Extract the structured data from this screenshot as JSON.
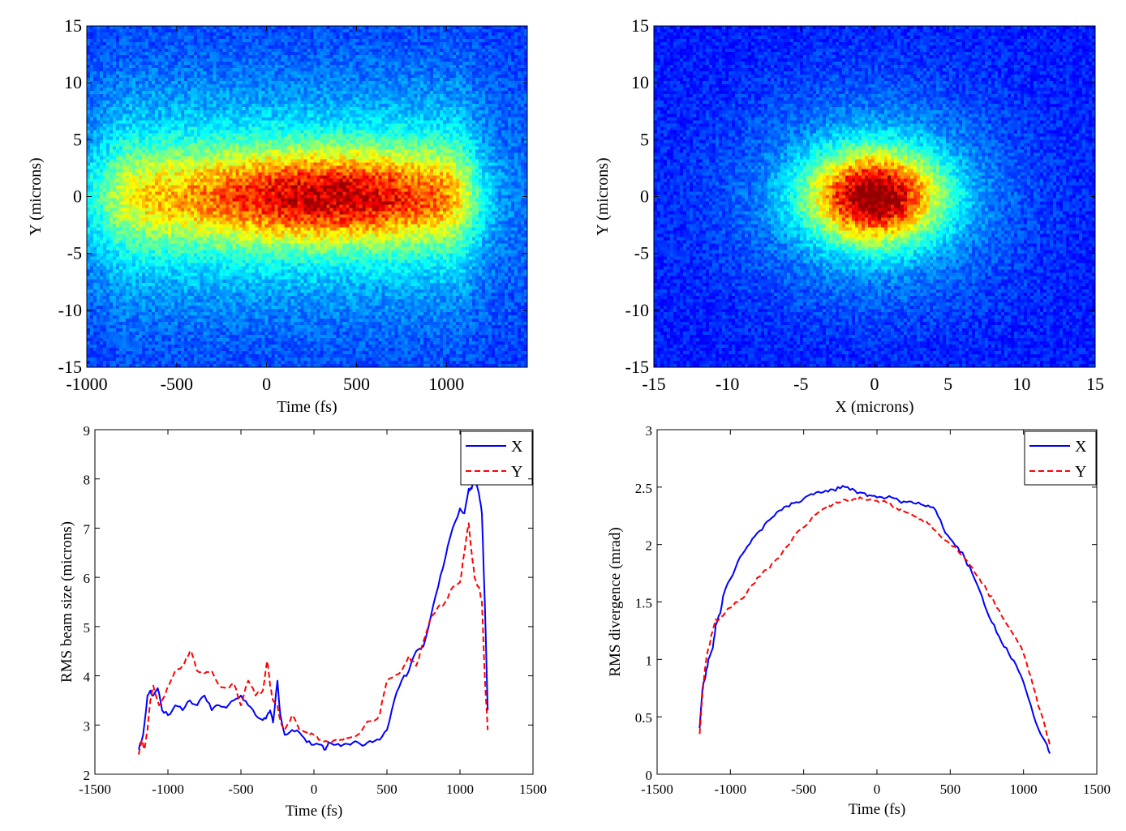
{
  "chart_data": [
    {
      "type": "heatmap",
      "xlabel": "Time (fs)",
      "ylabel": "Y (microns)",
      "xlim": [
        -1000,
        1450
      ],
      "ylim": [
        -15,
        15
      ],
      "xticks": [
        -1000,
        -500,
        0,
        500,
        1000
      ],
      "yticks": [
        -15,
        -10,
        -5,
        0,
        5,
        10,
        15
      ],
      "xtick_labels": [
        "-1000",
        "-500",
        "0",
        "500",
        "1000"
      ],
      "ytick_labels": [
        "-15",
        "-10",
        "-5",
        "0",
        "5",
        "10",
        "15"
      ],
      "colormap": "jet",
      "distribution": {
        "x_center": 300,
        "x_range": [
          -1000,
          1200
        ],
        "y_sigma": 3.2,
        "peak_x": 330,
        "peak_y": 0
      },
      "grid": false
    },
    {
      "type": "heatmap",
      "xlabel": "X (microns)",
      "ylabel": "Y (microns)",
      "xlim": [
        -15,
        15
      ],
      "ylim": [
        -15,
        15
      ],
      "xticks": [
        -15,
        -10,
        -5,
        0,
        5,
        10,
        15
      ],
      "yticks": [
        -15,
        -10,
        -5,
        0,
        5,
        10,
        15
      ],
      "xtick_labels": [
        "-15",
        "-10",
        "-5",
        "0",
        "5",
        "10",
        "15"
      ],
      "ytick_labels": [
        "-15",
        "-10",
        "-5",
        "0",
        "5",
        "10",
        "15"
      ],
      "colormap": "jet",
      "distribution": {
        "x_center": 0,
        "y_center": 0,
        "x_sigma": 3.3,
        "y_sigma": 3.0
      },
      "grid": false
    },
    {
      "type": "line",
      "xlabel": "Time (fs)",
      "ylabel": "RMS beam size (microns)",
      "xlim": [
        -1500,
        1500
      ],
      "ylim": [
        2,
        9
      ],
      "xticks": [
        -1500,
        -1000,
        -500,
        0,
        500,
        1000,
        1500
      ],
      "yticks": [
        2,
        3,
        4,
        5,
        6,
        7,
        8,
        9
      ],
      "xtick_labels": [
        "-1500",
        "-1000",
        "-500",
        "0",
        "500",
        "1000",
        "1500"
      ],
      "ytick_labels": [
        "2",
        "3",
        "4",
        "5",
        "6",
        "7",
        "8",
        "9"
      ],
      "legend": "top-right",
      "series": [
        {
          "name": "X",
          "color": "#0000ff",
          "dash": "solid",
          "x": [
            -1200,
            -1170,
            -1140,
            -1120,
            -1100,
            -1070,
            -1040,
            -1000,
            -950,
            -900,
            -850,
            -800,
            -750,
            -700,
            -650,
            -600,
            -550,
            -500,
            -450,
            -400,
            -350,
            -320,
            -300,
            -280,
            -250,
            -230,
            -200,
            -150,
            -100,
            -50,
            0,
            50,
            80,
            100,
            150,
            200,
            250,
            300,
            350,
            400,
            450,
            500,
            550,
            600,
            650,
            700,
            750,
            800,
            850,
            900,
            950,
            1000,
            1030,
            1060,
            1080,
            1100,
            1130,
            1150,
            1170,
            1190
          ],
          "y": [
            2.5,
            2.8,
            3.6,
            3.7,
            3.6,
            3.75,
            3.3,
            3.2,
            3.4,
            3.3,
            3.5,
            3.4,
            3.6,
            3.3,
            3.4,
            3.35,
            3.5,
            3.6,
            3.4,
            3.2,
            3.1,
            3.2,
            3.3,
            3.05,
            3.9,
            3.2,
            2.8,
            2.9,
            2.85,
            2.65,
            2.6,
            2.6,
            2.5,
            2.65,
            2.6,
            2.6,
            2.6,
            2.65,
            2.6,
            2.65,
            2.7,
            2.9,
            3.5,
            3.9,
            4.1,
            4.5,
            4.6,
            5.2,
            5.8,
            6.4,
            7.0,
            7.4,
            7.3,
            7.8,
            7.8,
            8.0,
            7.7,
            7.3,
            5.5,
            3.3
          ]
        },
        {
          "name": "Y",
          "color": "#ff0000",
          "dash": "dashed",
          "x": [
            -1200,
            -1180,
            -1160,
            -1140,
            -1120,
            -1100,
            -1060,
            -1020,
            -980,
            -950,
            -900,
            -870,
            -850,
            -830,
            -800,
            -750,
            -700,
            -650,
            -600,
            -550,
            -500,
            -450,
            -400,
            -350,
            -320,
            -300,
            -280,
            -250,
            -230,
            -200,
            -150,
            -100,
            -50,
            0,
            50,
            100,
            150,
            200,
            250,
            300,
            350,
            400,
            450,
            500,
            550,
            600,
            650,
            700,
            750,
            800,
            850,
            900,
            950,
            1000,
            1030,
            1060,
            1080,
            1100,
            1130,
            1150,
            1170,
            1190
          ],
          "y": [
            2.4,
            2.7,
            2.5,
            2.9,
            3.5,
            3.8,
            3.4,
            3.6,
            3.9,
            4.1,
            4.2,
            4.4,
            4.5,
            4.4,
            4.1,
            4.05,
            4.1,
            3.8,
            3.75,
            3.85,
            3.4,
            3.9,
            3.6,
            3.7,
            4.3,
            3.8,
            3.5,
            3.4,
            3.1,
            2.9,
            3.2,
            2.9,
            2.85,
            2.8,
            2.7,
            2.65,
            2.7,
            2.7,
            2.75,
            2.8,
            3.0,
            3.1,
            3.2,
            3.9,
            4.0,
            4.1,
            4.4,
            4.2,
            4.7,
            5.2,
            5.4,
            5.5,
            5.8,
            5.9,
            6.5,
            7.1,
            6.5,
            6.0,
            5.8,
            5.5,
            4.0,
            2.9
          ]
        }
      ]
    },
    {
      "type": "line",
      "xlabel": "Time (fs)",
      "ylabel": "RMS divergence (mrad)",
      "xlim": [
        -1500,
        1500
      ],
      "ylim": [
        0,
        3
      ],
      "xticks": [
        -1500,
        -1000,
        -500,
        0,
        500,
        1000,
        1500
      ],
      "yticks": [
        0,
        0.5,
        1,
        1.5,
        2,
        2.5,
        3
      ],
      "xtick_labels": [
        "-1500",
        "-1000",
        "-500",
        "0",
        "500",
        "1000",
        "1500"
      ],
      "ytick_labels": [
        "0",
        "0.5",
        "1",
        "1.5",
        "2",
        "2.5",
        "3"
      ],
      "legend": "top-right",
      "series": [
        {
          "name": "X",
          "color": "#0000ff",
          "dash": "solid",
          "x": [
            -1210,
            -1190,
            -1170,
            -1150,
            -1120,
            -1100,
            -1070,
            -1050,
            -1000,
            -950,
            -900,
            -850,
            -800,
            -750,
            -700,
            -650,
            -600,
            -550,
            -500,
            -450,
            -400,
            -350,
            -300,
            -250,
            -200,
            -150,
            -100,
            -50,
            0,
            50,
            100,
            150,
            200,
            250,
            300,
            350,
            400,
            450,
            500,
            550,
            600,
            650,
            700,
            750,
            800,
            850,
            900,
            950,
            1000,
            1050,
            1100,
            1150,
            1180
          ],
          "y": [
            0.4,
            0.75,
            0.85,
            1.0,
            1.1,
            1.3,
            1.4,
            1.55,
            1.7,
            1.85,
            1.95,
            2.05,
            2.12,
            2.2,
            2.25,
            2.3,
            2.33,
            2.37,
            2.4,
            2.44,
            2.46,
            2.47,
            2.48,
            2.49,
            2.5,
            2.47,
            2.45,
            2.43,
            2.41,
            2.4,
            2.41,
            2.38,
            2.37,
            2.36,
            2.35,
            2.34,
            2.3,
            2.15,
            2.05,
            1.98,
            1.88,
            1.75,
            1.6,
            1.42,
            1.3,
            1.15,
            1.05,
            0.95,
            0.8,
            0.6,
            0.4,
            0.28,
            0.18
          ]
        },
        {
          "name": "Y",
          "color": "#ff0000",
          "dash": "dashed",
          "x": [
            -1210,
            -1190,
            -1170,
            -1150,
            -1120,
            -1100,
            -1070,
            -1050,
            -1000,
            -950,
            -900,
            -850,
            -800,
            -750,
            -700,
            -650,
            -600,
            -550,
            -500,
            -450,
            -400,
            -350,
            -300,
            -250,
            -200,
            -150,
            -100,
            -50,
            0,
            50,
            100,
            150,
            200,
            250,
            300,
            350,
            400,
            450,
            500,
            550,
            600,
            650,
            700,
            750,
            800,
            850,
            900,
            950,
            1000,
            1050,
            1100,
            1150,
            1180
          ],
          "y": [
            0.35,
            0.7,
            0.95,
            1.1,
            1.25,
            1.35,
            1.35,
            1.38,
            1.45,
            1.5,
            1.55,
            1.65,
            1.72,
            1.78,
            1.85,
            1.92,
            2.0,
            2.1,
            2.15,
            2.22,
            2.28,
            2.32,
            2.35,
            2.37,
            2.38,
            2.4,
            2.4,
            2.39,
            2.38,
            2.38,
            2.34,
            2.3,
            2.28,
            2.25,
            2.22,
            2.18,
            2.12,
            2.05,
            2.0,
            1.95,
            1.88,
            1.8,
            1.7,
            1.6,
            1.5,
            1.38,
            1.28,
            1.18,
            1.05,
            0.85,
            0.6,
            0.4,
            0.25
          ]
        }
      ]
    }
  ]
}
